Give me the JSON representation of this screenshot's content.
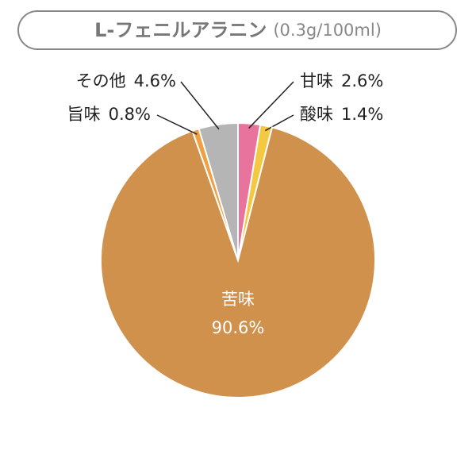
{
  "chart_data": {
    "type": "pie",
    "title": "L-フェニルアラニン",
    "subtitle": "(0.3g/100ml)",
    "categories": [
      "甘味",
      "酸味",
      "苦味",
      "旨味",
      "その他"
    ],
    "values": [
      2.6,
      1.4,
      90.6,
      0.8,
      4.6
    ],
    "value_labels": [
      "2.6%",
      "1.4%",
      "90.6%",
      "0.8%",
      "4.6%"
    ],
    "colors": [
      "#e8739d",
      "#f5c842",
      "#d0914d",
      "#f0a040",
      "#b5b5b5"
    ]
  }
}
